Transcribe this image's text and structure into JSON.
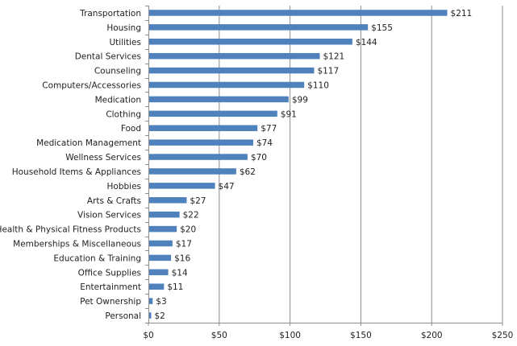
{
  "chart_data": {
    "type": "bar",
    "orientation": "horizontal",
    "title": "",
    "xlabel": "",
    "ylabel": "",
    "xlim": [
      0,
      250
    ],
    "grid": "vertical",
    "bar_color": "#4f81bd",
    "categories": [
      "Transportation",
      "Housing",
      "Utilities",
      "Dental Services",
      "Counseling",
      "Computers/Accessories",
      "Medication",
      "Clothing",
      "Food",
      "Medication Management",
      "Wellness Services",
      "Household Items & Appliances",
      "Hobbies",
      "Arts & Crafts",
      "Vision Services",
      "Health & Physical Fitness Products",
      "Memberships & Miscellaneous",
      "Education & Training",
      "Office Supplies",
      "Entertainment",
      "Pet Ownership",
      "Personal"
    ],
    "values": [
      211,
      155,
      144,
      121,
      117,
      110,
      99,
      91,
      77,
      74,
      70,
      62,
      47,
      27,
      22,
      20,
      17,
      16,
      14,
      11,
      3,
      2
    ],
    "data_labels": [
      "$211",
      "$155",
      "$144",
      "$121",
      "$117",
      "$110",
      "$99",
      "$91",
      "$77",
      "$74",
      "$70",
      "$62",
      "$47",
      "$27",
      "$22",
      "$20",
      "$17",
      "$16",
      "$14",
      "$11",
      "$3",
      "$2"
    ],
    "x_ticks": [
      0,
      50,
      100,
      150,
      200,
      250
    ],
    "x_tick_labels": [
      "$0",
      "$50",
      "$100",
      "$150",
      "$200",
      "$250"
    ]
  }
}
